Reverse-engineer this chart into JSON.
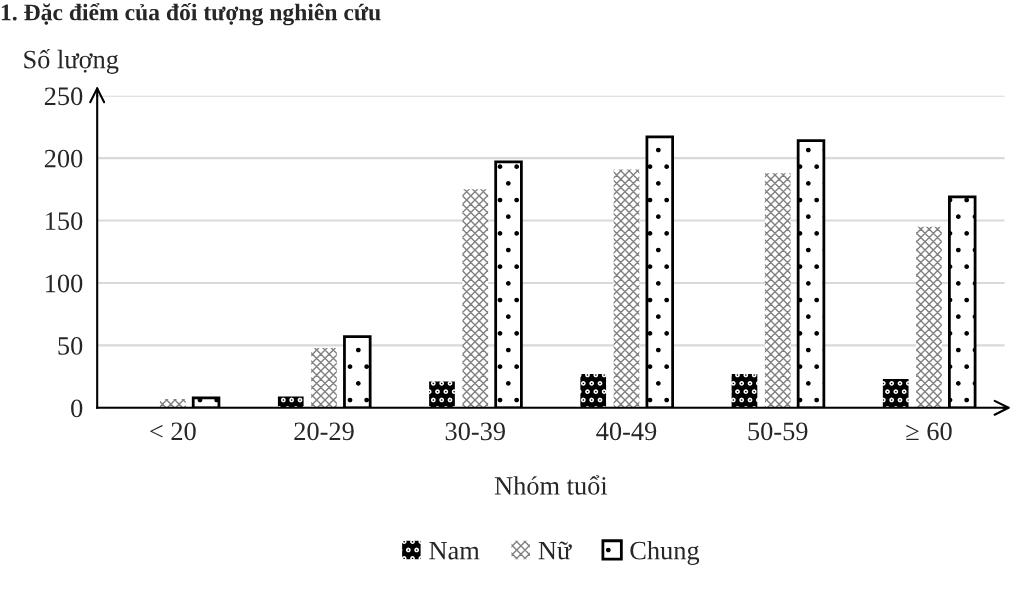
{
  "chart_data": {
    "type": "bar",
    "title": "1. Đặc điểm của đối tượng nghiên cứu",
    "categories": [
      "< 20",
      "20-29",
      "30-39",
      "40-49",
      "50-59",
      "≥ 60"
    ],
    "series": [
      {
        "name": "Nam",
        "color": "#000000",
        "values": [
          0,
          9,
          21,
          27,
          27,
          23
        ]
      },
      {
        "name": "Nữ",
        "color": "#808080",
        "values": [
          7,
          48,
          175,
          191,
          188,
          145
        ]
      },
      {
        "name": "Chung",
        "color": "#000000",
        "values": [
          8,
          57,
          197,
          217,
          214,
          169
        ]
      }
    ],
    "xlabel": "Nhóm tuổi",
    "ylabel": "Số lượng",
    "ylim": [
      0,
      250
    ],
    "yticks": [
      0,
      50,
      100,
      150,
      200,
      250
    ],
    "grid": "y",
    "legend": "bottom"
  }
}
